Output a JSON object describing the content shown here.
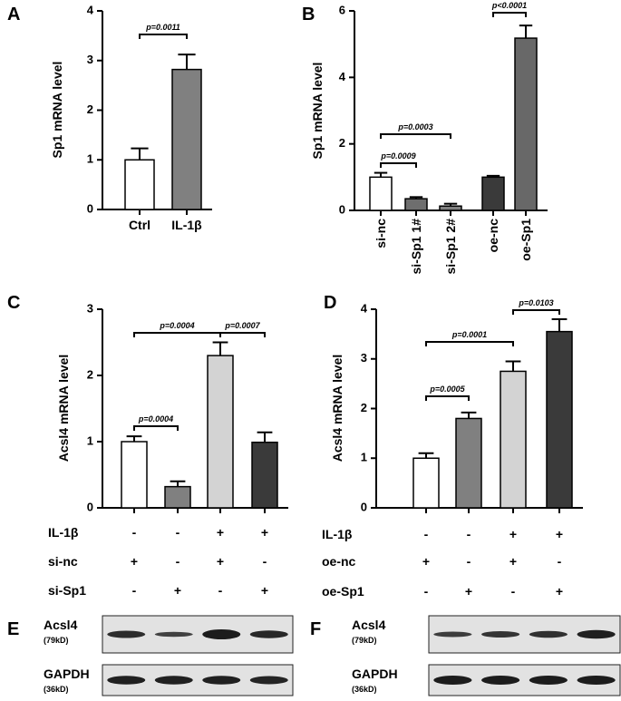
{
  "chart_data": [
    {
      "type": "bar",
      "panel": "A",
      "ylabel": "Sp1 mRNA level",
      "categories": [
        "Ctrl",
        "IL-1β"
      ],
      "values": [
        1.0,
        2.82
      ],
      "errors": [
        0.23,
        0.3
      ],
      "colors": [
        "#ffffff",
        "#808080"
      ],
      "ylim": [
        0,
        4
      ],
      "yticks": [
        0,
        1,
        2,
        3,
        4
      ],
      "annotations": [
        {
          "text": "p=0.0011",
          "from": 0,
          "to": 1
        }
      ]
    },
    {
      "type": "bar",
      "panel": "B",
      "ylabel": "Sp1 mRNA level",
      "categories": [
        "si-nc",
        "si-Sp1 1#",
        "si-Sp1 2#",
        "oe-nc",
        "oe-Sp1"
      ],
      "values": [
        1.0,
        0.35,
        0.13,
        1.0,
        5.18
      ],
      "errors": [
        0.13,
        0.05,
        0.07,
        0.04,
        0.38
      ],
      "colors": [
        "#ffffff",
        "#6e6e6e",
        "#808080",
        "#3a3a3a",
        "#686868"
      ],
      "ylim": [
        0,
        6
      ],
      "yticks": [
        0,
        2,
        4,
        6
      ],
      "annotations": [
        {
          "text": "p=0.0009",
          "from": 0,
          "to": 1
        },
        {
          "text": "p=0.0003",
          "from": 0,
          "to": 2
        },
        {
          "text": "p<0.0001",
          "from": 3,
          "to": 4
        }
      ]
    },
    {
      "type": "bar",
      "panel": "C",
      "ylabel": "Acsl4 mRNA level",
      "categories": [
        null,
        null,
        null,
        null
      ],
      "values": [
        1.0,
        0.32,
        2.3,
        0.99
      ],
      "errors": [
        0.08,
        0.08,
        0.2,
        0.15
      ],
      "colors": [
        "#ffffff",
        "#808080",
        "#d3d3d3",
        "#3a3a3a"
      ],
      "ylim": [
        0,
        3
      ],
      "yticks": [
        0,
        1,
        2,
        3
      ],
      "annotations": [
        {
          "text": "p=0.0004",
          "from": 0,
          "to": 1
        },
        {
          "text": "p=0.0004",
          "from": 0,
          "to": 2
        },
        {
          "text": "p=0.0007",
          "from": 2,
          "to": 3
        }
      ],
      "conditions": [
        {
          "name": "IL-1β",
          "signs": [
            "-",
            "-",
            "+",
            "+"
          ]
        },
        {
          "name": "si-nc",
          "signs": [
            "+",
            "-",
            "+",
            "-"
          ]
        },
        {
          "name": "si-Sp1",
          "signs": [
            "-",
            "+",
            "-",
            "+"
          ]
        }
      ]
    },
    {
      "type": "bar",
      "panel": "D",
      "ylabel": "Acsl4 mRNA level",
      "categories": [
        null,
        null,
        null,
        null
      ],
      "values": [
        1.0,
        1.8,
        2.75,
        3.55
      ],
      "errors": [
        0.1,
        0.12,
        0.2,
        0.25
      ],
      "colors": [
        "#ffffff",
        "#808080",
        "#d3d3d3",
        "#3a3a3a"
      ],
      "ylim": [
        0,
        4
      ],
      "yticks": [
        0,
        1,
        2,
        3,
        4
      ],
      "annotations": [
        {
          "text": "p=0.0005",
          "from": 0,
          "to": 1
        },
        {
          "text": "p=0.0001",
          "from": 0,
          "to": 2
        },
        {
          "text": "p=0.0103",
          "from": 2,
          "to": 3
        }
      ],
      "conditions": [
        {
          "name": "IL-1β",
          "signs": [
            "-",
            "-",
            "+",
            "+"
          ]
        },
        {
          "name": "oe-nc",
          "signs": [
            "+",
            "-",
            "+",
            "-"
          ]
        },
        {
          "name": "oe-Sp1",
          "signs": [
            "-",
            "+",
            "-",
            "+"
          ]
        }
      ]
    }
  ],
  "blots": [
    {
      "panel": "E",
      "rows": [
        {
          "name": "Acsl4",
          "size": "(79kD)"
        },
        {
          "name": "GAPDH",
          "size": "(36kD)"
        }
      ]
    },
    {
      "panel": "F",
      "rows": [
        {
          "name": "Acsl4",
          "size": "(79kD)"
        },
        {
          "name": "GAPDH",
          "size": "(36kD)"
        }
      ]
    }
  ]
}
